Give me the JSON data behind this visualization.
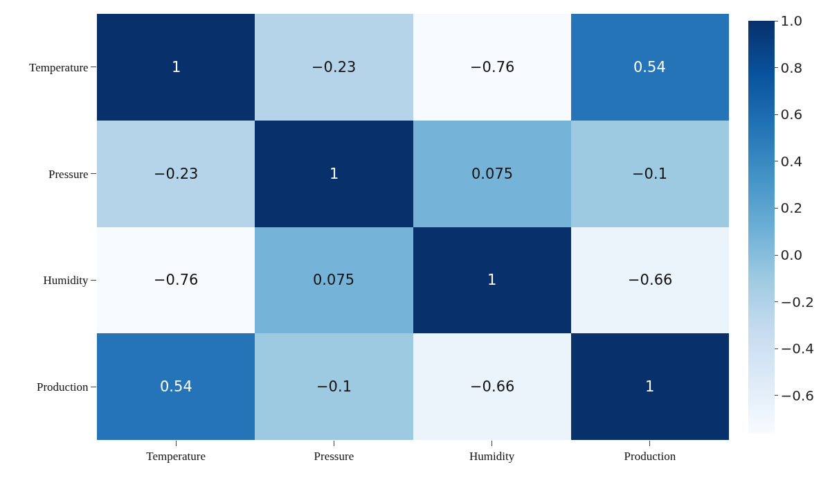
{
  "chart_data": {
    "type": "heatmap",
    "categories": [
      "Temperature",
      "Pressure",
      "Humidity",
      "Production"
    ],
    "y_categories": [
      "Temperature",
      "Pressure",
      "Humidity",
      "Production"
    ],
    "cells": [
      [
        1,
        -0.23,
        -0.76,
        0.54
      ],
      [
        -0.23,
        1,
        0.075,
        -0.1
      ],
      [
        -0.76,
        0.075,
        1,
        -0.66
      ],
      [
        0.54,
        -0.1,
        -0.66,
        1
      ]
    ],
    "cell_labels": [
      [
        "1",
        "−0.23",
        "−0.76",
        "0.54"
      ],
      [
        "−0.23",
        "1",
        "0.075",
        "−0.1"
      ],
      [
        "−0.76",
        "0.075",
        "1",
        "−0.66"
      ],
      [
        "0.54",
        "−0.1",
        "−0.66",
        "1"
      ]
    ],
    "clim": [
      -0.76,
      1
    ],
    "cticks": [
      {
        "value": -0.6,
        "label": "−0.6"
      },
      {
        "value": -0.4,
        "label": "−0.4"
      },
      {
        "value": -0.2,
        "label": "−0.2"
      },
      {
        "value": 0,
        "label": "0.0"
      },
      0.2,
      0.4,
      0.6,
      0.8,
      {
        "value": 1,
        "label": "1.0"
      }
    ]
  }
}
